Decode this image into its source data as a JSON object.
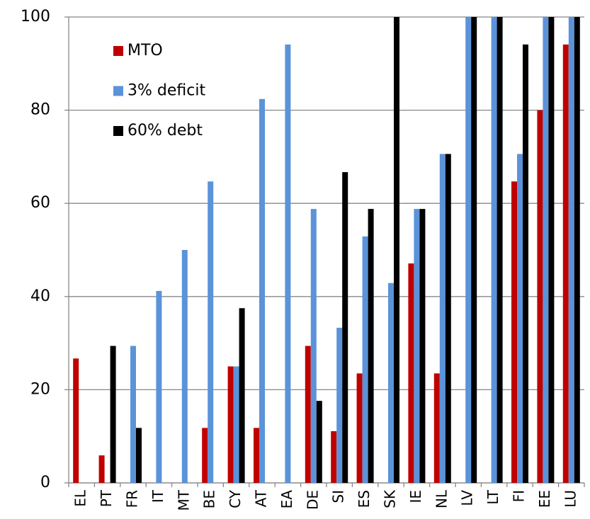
{
  "chart_data": {
    "type": "bar",
    "categories": [
      "EL",
      "PT",
      "FR",
      "IT",
      "MT",
      "BE",
      "CY",
      "AT",
      "EA",
      "DE",
      "SI",
      "ES",
      "SK",
      "IE",
      "NL",
      "LV",
      "LT",
      "FI",
      "EE",
      "LU"
    ],
    "series": [
      {
        "name": "MTO",
        "color": "#c00000",
        "values": [
          26.7,
          5.9,
          0,
          0,
          0,
          11.8,
          25,
          11.8,
          0,
          29.4,
          11.1,
          23.5,
          0,
          47.1,
          23.5,
          0,
          0,
          64.7,
          80,
          94.1
        ]
      },
      {
        "name": "3% deficit",
        "color": "#5b93d9",
        "values": [
          0,
          0,
          29.4,
          41.2,
          50,
          64.7,
          25,
          82.4,
          94.1,
          58.8,
          33.3,
          52.9,
          42.9,
          58.8,
          70.6,
          100,
          100,
          70.6,
          100,
          100
        ]
      },
      {
        "name": "60% debt",
        "color": "#000000",
        "values": [
          0,
          29.4,
          11.8,
          0,
          0,
          0,
          37.5,
          0,
          0,
          17.6,
          66.7,
          58.8,
          100,
          58.8,
          70.6,
          100,
          100,
          94.1,
          100,
          100
        ]
      }
    ],
    "ylim": [
      0,
      100
    ],
    "yticks": [
      0,
      20,
      40,
      60,
      80,
      100
    ],
    "grid": true,
    "legend": "top-left"
  }
}
